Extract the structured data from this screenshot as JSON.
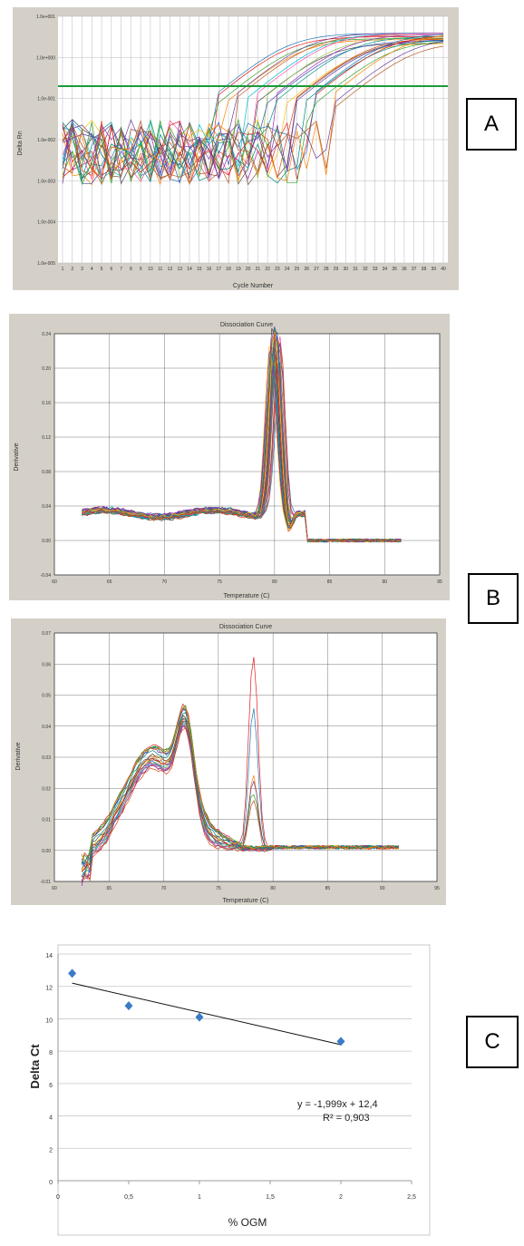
{
  "panel_labels": {
    "a": "A",
    "b": "B",
    "c": "C"
  },
  "colors": {
    "threshold": "#1a9a3a",
    "marker": "#3a7bc8",
    "frame": "#d4d0c8"
  },
  "chart_data": [
    {
      "id": "A",
      "type": "line",
      "scale": "log",
      "xlabel": "Cycle Number",
      "ylabel": "Delta Rn",
      "x_ticks": [
        "1",
        "2",
        "3",
        "4",
        "5",
        "6",
        "7",
        "8",
        "9",
        "10",
        "11",
        "12",
        "13",
        "14",
        "15",
        "16",
        "17",
        "18",
        "19",
        "20",
        "21",
        "22",
        "23",
        "24",
        "25",
        "26",
        "27",
        "28",
        "29",
        "30",
        "31",
        "32",
        "33",
        "34",
        "35",
        "36",
        "37",
        "38",
        "39",
        "40"
      ],
      "y_ticks": [
        "1.0e+001",
        "1.0e+000",
        "1.0e-001",
        "1.0e-002",
        "1.0e-003",
        "1.0e-004",
        "1.0e-005"
      ],
      "ylim": [
        1e-05,
        10
      ],
      "threshold": 0.2,
      "series_count": 24
    },
    {
      "id": "B",
      "type": "line",
      "title": "Dissociation Curve",
      "xlabel": "Temperature (C)",
      "ylabel": "Derivative",
      "x_ticks": [
        "60",
        "65",
        "70",
        "75",
        "80",
        "85",
        "90",
        "95"
      ],
      "y_ticks": [
        "0.24",
        "0.20",
        "0.16",
        "0.12",
        "0.08",
        "0.04",
        "0.00",
        "-0.04"
      ],
      "xlim": [
        60,
        95
      ],
      "ylim": [
        -0.04,
        0.24
      ],
      "series_count": 34
    },
    {
      "id": "B2",
      "type": "line",
      "title": "Dissociation Curve",
      "xlabel": "Temperature (C)",
      "ylabel": "Derivative",
      "x_ticks": [
        "60",
        "65",
        "70",
        "75",
        "80",
        "85",
        "90",
        "95"
      ],
      "y_ticks": [
        "0.07",
        "0.06",
        "0.05",
        "0.04",
        "0.03",
        "0.02",
        "0.01",
        "0.00",
        "-0.01"
      ],
      "xlim": [
        60,
        95
      ],
      "ylim": [
        -0.01,
        0.07
      ],
      "series_count": 22
    },
    {
      "id": "C",
      "type": "scatter",
      "xlabel": "% OGM",
      "ylabel": "Delta Ct",
      "x_ticks": [
        "0",
        "0,5",
        "1",
        "1,5",
        "2",
        "2,5"
      ],
      "y_ticks": [
        "0",
        "2",
        "4",
        "6",
        "8",
        "10",
        "12",
        "14"
      ],
      "xlim": [
        0,
        2.5
      ],
      "ylim": [
        0,
        14
      ],
      "x": [
        0.1,
        0.5,
        1.0,
        2.0
      ],
      "y": [
        12.8,
        10.8,
        10.1,
        8.6
      ],
      "trendline": {
        "slope": -1.999,
        "intercept": 12.4
      },
      "equation": "y = -1,999x + 12,4",
      "r2": "R² = 0,903"
    }
  ]
}
